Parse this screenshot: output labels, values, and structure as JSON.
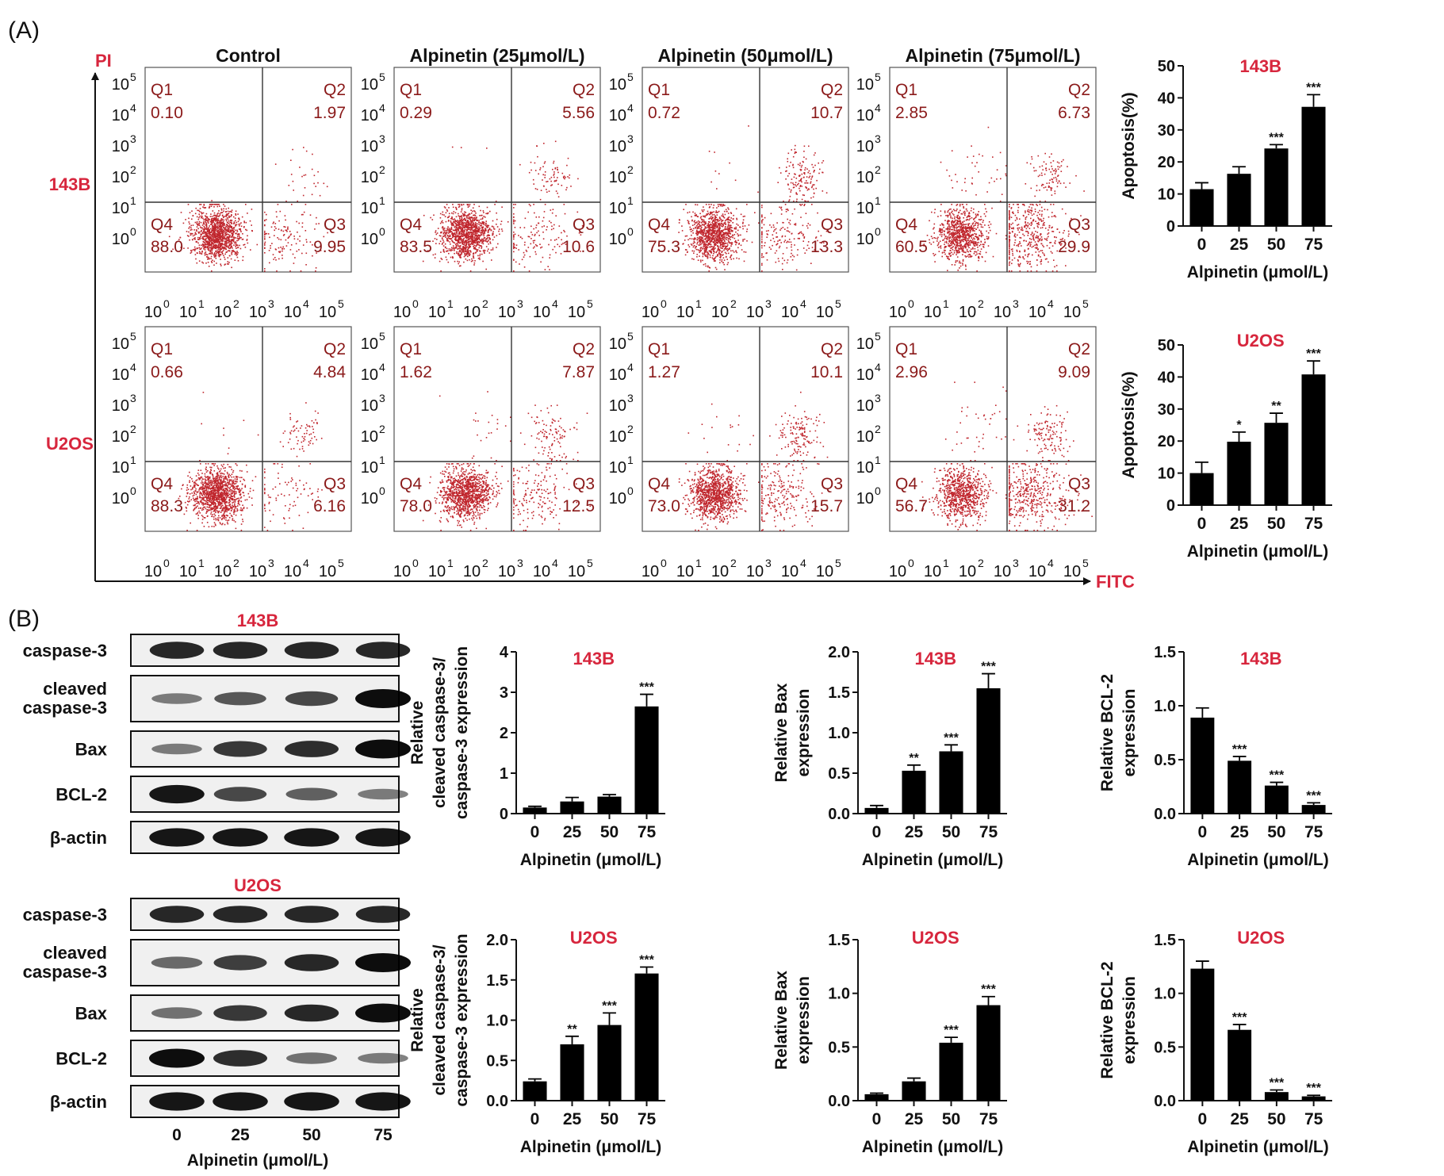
{
  "panel_labels": {
    "a": "(A)",
    "b": "(B)"
  },
  "flow": {
    "y_axis_label": "PI",
    "x_axis_label": "FITC",
    "column_titles": [
      "Control",
      "Alpinetin (25μmol/L)",
      "Alpinetin (50μmol/L)",
      "Alpinetin (75μmol/L)"
    ],
    "row_labels": [
      "143B",
      "U2OS"
    ],
    "quadrant_names": [
      "Q1",
      "Q2",
      "Q3",
      "Q4"
    ],
    "tick_base": "10",
    "y_exponents": [
      "5",
      "4",
      "3",
      "2",
      "1",
      "0"
    ],
    "x_exponents": [
      "0",
      "1",
      "2",
      "3",
      "4",
      "5"
    ],
    "plots": [
      {
        "row": "143B",
        "condition": "Control",
        "q1": "0.10",
        "q2": "1.97",
        "q3": "9.95",
        "q4": "88.0"
      },
      {
        "row": "143B",
        "condition": "Alpinetin (25μmol/L)",
        "q1": "0.29",
        "q2": "5.56",
        "q3": "10.6",
        "q4": "83.5"
      },
      {
        "row": "143B",
        "condition": "Alpinetin (50μmol/L)",
        "q1": "0.72",
        "q2": "10.7",
        "q3": "13.3",
        "q4": "75.3"
      },
      {
        "row": "143B",
        "condition": "Alpinetin (75μmol/L)",
        "q1": "2.85",
        "q2": "6.73",
        "q3": "29.9",
        "q4": "60.5"
      },
      {
        "row": "U2OS",
        "condition": "Control",
        "q1": "0.66",
        "q2": "4.84",
        "q3": "6.16",
        "q4": "88.3"
      },
      {
        "row": "U2OS",
        "condition": "Alpinetin (25μmol/L)",
        "q1": "1.62",
        "q2": "7.87",
        "q3": "12.5",
        "q4": "78.0"
      },
      {
        "row": "U2OS",
        "condition": "Alpinetin (50μmol/L)",
        "q1": "1.27",
        "q2": "10.1",
        "q3": "15.7",
        "q4": "73.0"
      },
      {
        "row": "U2OS",
        "condition": "Alpinetin (75μmol/L)",
        "q1": "2.96",
        "q2": "9.09",
        "q3": "31.2",
        "q4": "56.7"
      }
    ]
  },
  "blots": {
    "cell_lines": [
      "143B",
      "U2OS"
    ],
    "proteins": [
      "caspase-3",
      "cleaved caspase-3",
      "Bax",
      "BCL-2",
      "β-actin"
    ],
    "lane_labels": [
      "0",
      "25",
      "50",
      "75"
    ],
    "x_label": "Alpinetin (μmol/L)",
    "band_intensity": {
      "143B": {
        "caspase-3": [
          0.85,
          0.85,
          0.85,
          0.85
        ],
        "cleaved caspase-3": [
          0.35,
          0.55,
          0.65,
          1.0
        ],
        "Bax": [
          0.35,
          0.75,
          0.8,
          1.0
        ],
        "BCL-2": [
          0.95,
          0.65,
          0.5,
          0.35
        ],
        "β-actin": [
          0.95,
          0.95,
          0.95,
          0.95
        ]
      },
      "U2OS": {
        "caspase-3": [
          0.85,
          0.85,
          0.85,
          0.85
        ],
        "cleaved caspase-3": [
          0.45,
          0.7,
          0.85,
          1.0
        ],
        "Bax": [
          0.4,
          0.75,
          0.85,
          1.0
        ],
        "BCL-2": [
          1.0,
          0.8,
          0.4,
          0.35
        ],
        "β-actin": [
          0.95,
          0.95,
          0.95,
          0.95
        ]
      }
    }
  },
  "chart_data": [
    {
      "type": "bar",
      "title": "143B",
      "categories": [
        "0",
        "25",
        "50",
        "75"
      ],
      "values": [
        11.5,
        16.3,
        24.2,
        37.2
      ],
      "errors": [
        2.0,
        2.2,
        1.2,
        3.8
      ],
      "significance": [
        "",
        "",
        "***",
        "***"
      ],
      "xlabel": "Alpinetin (μmol/L)",
      "ylabel": "Apoptosis(%)",
      "ylim": [
        0,
        50
      ],
      "yticks": [
        "0",
        "10",
        "20",
        "30",
        "40",
        "50"
      ]
    },
    {
      "type": "bar",
      "title": "U2OS",
      "categories": [
        "0",
        "25",
        "50",
        "75"
      ],
      "values": [
        10.0,
        19.8,
        25.7,
        40.8
      ],
      "errors": [
        3.4,
        3.0,
        3.0,
        4.2
      ],
      "significance": [
        "",
        "*",
        "**",
        "***"
      ],
      "xlabel": "Alpinetin (μmol/L)",
      "ylabel": "Apoptosis(%)",
      "ylim": [
        0,
        50
      ],
      "yticks": [
        "0",
        "10",
        "20",
        "30",
        "40",
        "50"
      ]
    },
    {
      "type": "bar",
      "title": "143B",
      "categories": [
        "0",
        "25",
        "50",
        "75"
      ],
      "values": [
        0.15,
        0.3,
        0.42,
        2.65
      ],
      "errors": [
        0.03,
        0.1,
        0.05,
        0.3
      ],
      "significance": [
        "",
        "",
        "",
        "***"
      ],
      "xlabel": "Alpinetin (μmol/L)",
      "ylabel": "Relative cleaved caspase-3/ caspase-3 expression",
      "ylim": [
        0,
        4
      ],
      "yticks": [
        "0",
        "1",
        "2",
        "3",
        "4"
      ]
    },
    {
      "type": "bar",
      "title": "143B",
      "categories": [
        "0",
        "25",
        "50",
        "75"
      ],
      "values": [
        0.07,
        0.53,
        0.77,
        1.55
      ],
      "errors": [
        0.03,
        0.07,
        0.08,
        0.18
      ],
      "significance": [
        "",
        "**",
        "***",
        "***"
      ],
      "xlabel": "Alpinetin (μmol/L)",
      "ylabel": "Relative Bax expression",
      "ylim": [
        0,
        2.0
      ],
      "yticks": [
        "0.0",
        "0.5",
        "1.0",
        "1.5",
        "2.0"
      ]
    },
    {
      "type": "bar",
      "title": "143B",
      "categories": [
        "0",
        "25",
        "50",
        "75"
      ],
      "values": [
        0.89,
        0.49,
        0.26,
        0.08
      ],
      "errors": [
        0.09,
        0.04,
        0.03,
        0.02
      ],
      "significance": [
        "",
        "***",
        "***",
        "***"
      ],
      "xlabel": "Alpinetin (μmol/L)",
      "ylabel": "Relative BCL-2 expression",
      "ylim": [
        0,
        1.5
      ],
      "yticks": [
        "0.0",
        "0.5",
        "1.0",
        "1.5"
      ]
    },
    {
      "type": "bar",
      "title": "U2OS",
      "categories": [
        "0",
        "25",
        "50",
        "75"
      ],
      "values": [
        0.24,
        0.7,
        0.94,
        1.58
      ],
      "errors": [
        0.03,
        0.1,
        0.15,
        0.08
      ],
      "significance": [
        "",
        "**",
        "***",
        "***"
      ],
      "xlabel": "Alpinetin (μmol/L)",
      "ylabel": "Relative cleaved caspase-3/ caspase-3 expression",
      "ylim": [
        0,
        2.0
      ],
      "yticks": [
        "0.0",
        "0.5",
        "1.0",
        "1.5",
        "2.0"
      ]
    },
    {
      "type": "bar",
      "title": "U2OS",
      "categories": [
        "0",
        "25",
        "50",
        "75"
      ],
      "values": [
        0.06,
        0.18,
        0.54,
        0.89
      ],
      "errors": [
        0.01,
        0.03,
        0.05,
        0.08
      ],
      "significance": [
        "",
        "",
        "***",
        "***"
      ],
      "xlabel": "Alpinetin (μmol/L)",
      "ylabel": "Relative Bax expression",
      "ylim": [
        0,
        1.5
      ],
      "yticks": [
        "0.0",
        "0.5",
        "1.0",
        "1.5"
      ]
    },
    {
      "type": "bar",
      "title": "U2OS",
      "categories": [
        "0",
        "25",
        "50",
        "75"
      ],
      "values": [
        1.23,
        0.66,
        0.08,
        0.04
      ],
      "errors": [
        0.07,
        0.05,
        0.02,
        0.01
      ],
      "significance": [
        "",
        "***",
        "***",
        "***"
      ],
      "xlabel": "Alpinetin (μmol/L)",
      "ylabel": "Relative BCL-2 expression",
      "ylim": [
        0,
        1.5
      ],
      "yticks": [
        "0.0",
        "0.5",
        "1.0",
        "1.5"
      ]
    }
  ]
}
